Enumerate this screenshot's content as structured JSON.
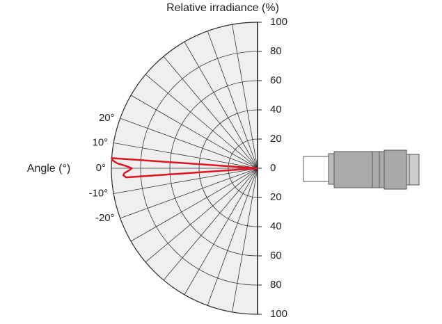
{
  "chart_data": {
    "type": "polar",
    "title": "Relative irradiance (%)",
    "angle_label": "Angle (°)",
    "rlim": [
      0,
      100
    ],
    "rticks": [
      0,
      20,
      40,
      60,
      80,
      100
    ],
    "thetalim": [
      -90,
      90
    ],
    "thetaticks": [
      {
        "value": 20,
        "label": "20°"
      },
      {
        "value": 10,
        "label": "10°"
      },
      {
        "value": 0,
        "label": "0°"
      },
      {
        "value": -10,
        "label": "-10°"
      },
      {
        "value": -20,
        "label": "-20°"
      }
    ],
    "thetagrid": [
      -80,
      -70,
      -60,
      -50,
      -40,
      -30,
      -20,
      -10,
      0,
      10,
      20,
      30,
      40,
      50,
      60,
      70,
      80
    ],
    "grid": true,
    "series": [
      {
        "color": "#e0141e",
        "angles": [
          -5,
          -4,
          -3,
          -2,
          -1,
          0,
          1,
          2,
          3,
          4,
          5
        ],
        "values": [
          0,
          90,
          92,
          91,
          88,
          86,
          90,
          96,
          99,
          100,
          0
        ]
      }
    ]
  }
}
